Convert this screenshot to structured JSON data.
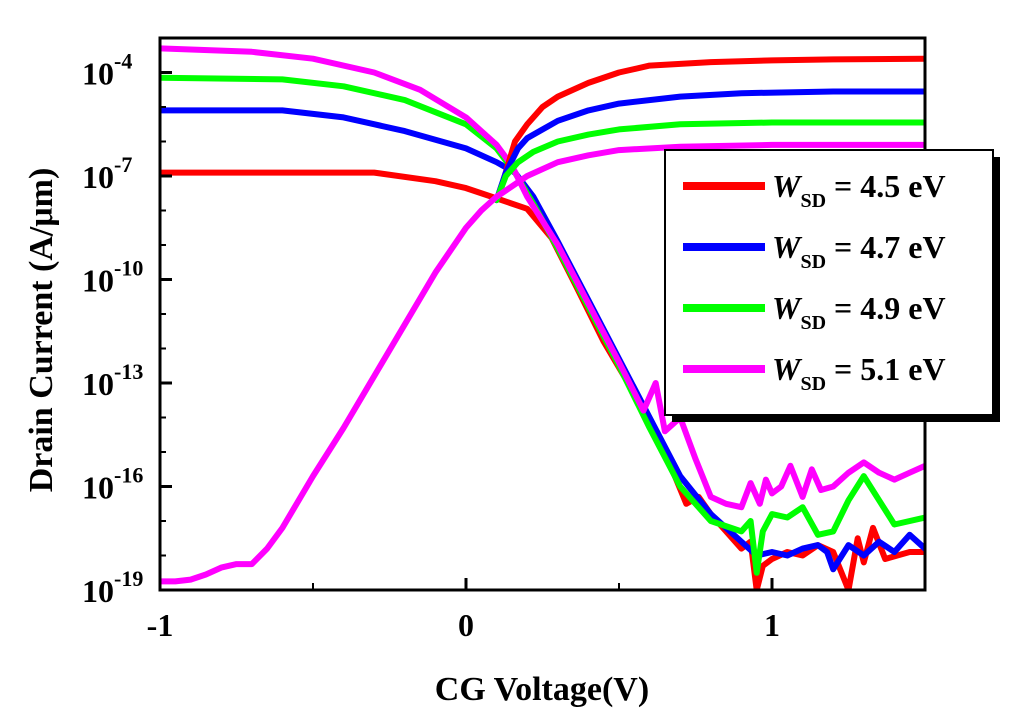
{
  "chart_data": {
    "type": "line",
    "xlabel": "CG Voltage(V)",
    "ylabel": "Drain Current (A/μm)",
    "xlim": [
      -1,
      1.5
    ],
    "ylim_log10": [
      -19,
      -3
    ],
    "yscale": "log",
    "grid": false,
    "legend_placement": "center-right",
    "x_ticks": [
      {
        "value": -1,
        "label": "-1"
      },
      {
        "value": 0,
        "label": "0"
      },
      {
        "value": 1,
        "label": "1"
      }
    ],
    "y_ticks": [
      {
        "exp": -19,
        "label_base": "10",
        "label_exp": "-19"
      },
      {
        "exp": -16,
        "label_base": "10",
        "label_exp": "-16"
      },
      {
        "exp": -13,
        "label_base": "10",
        "label_exp": "-13"
      },
      {
        "exp": -10,
        "label_base": "10",
        "label_exp": "-10"
      },
      {
        "exp": -7,
        "label_base": "10",
        "label_exp": "-7"
      },
      {
        "exp": -4,
        "label_base": "10",
        "label_exp": "-4"
      }
    ],
    "legend": [
      {
        "w": "W",
        "sub": "SD",
        "rest": " = 4.5 eV",
        "color": "#ff0000"
      },
      {
        "w": "W",
        "sub": "SD",
        "rest": " = 4.7 eV",
        "color": "#0000ff"
      },
      {
        "w": "W",
        "sub": "SD",
        "rest": " = 4.9 eV",
        "color": "#00ff00"
      },
      {
        "w": "W",
        "sub": "SD",
        "rest": " = 5.1 eV",
        "color": "#ff00ff"
      }
    ],
    "series_fwd": [
      {
        "color": "#ff0000",
        "points": [
          [
            0.1,
            -7.7
          ],
          [
            0.12,
            -7.2
          ],
          [
            0.14,
            -6.6
          ],
          [
            0.16,
            -6.0
          ],
          [
            0.2,
            -5.5
          ],
          [
            0.25,
            -5.0
          ],
          [
            0.3,
            -4.7
          ],
          [
            0.4,
            -4.3
          ],
          [
            0.5,
            -4.0
          ],
          [
            0.6,
            -3.8
          ],
          [
            0.8,
            -3.7
          ],
          [
            1.0,
            -3.65
          ],
          [
            1.2,
            -3.62
          ],
          [
            1.5,
            -3.6
          ]
        ]
      },
      {
        "color": "#0000ff",
        "points": [
          [
            0.1,
            -7.7
          ],
          [
            0.13,
            -6.9
          ],
          [
            0.17,
            -6.2
          ],
          [
            0.2,
            -5.9
          ],
          [
            0.3,
            -5.4
          ],
          [
            0.4,
            -5.1
          ],
          [
            0.5,
            -4.9
          ],
          [
            0.7,
            -4.7
          ],
          [
            0.9,
            -4.6
          ],
          [
            1.2,
            -4.55
          ],
          [
            1.5,
            -4.55
          ]
        ]
      },
      {
        "color": "#00ff00",
        "points": [
          [
            0.1,
            -7.7
          ],
          [
            0.13,
            -7.0
          ],
          [
            0.17,
            -6.6
          ],
          [
            0.22,
            -6.3
          ],
          [
            0.3,
            -6.0
          ],
          [
            0.4,
            -5.8
          ],
          [
            0.5,
            -5.65
          ],
          [
            0.7,
            -5.5
          ],
          [
            1.0,
            -5.45
          ],
          [
            1.5,
            -5.45
          ]
        ]
      },
      {
        "color": "#ff00ff",
        "points": [
          [
            -1,
            -18.75
          ],
          [
            -0.95,
            -18.75
          ],
          [
            -0.9,
            -18.7
          ],
          [
            -0.85,
            -18.55
          ],
          [
            -0.8,
            -18.35
          ],
          [
            -0.75,
            -18.25
          ],
          [
            -0.7,
            -18.25
          ],
          [
            -0.65,
            -17.8
          ],
          [
            -0.6,
            -17.2
          ],
          [
            -0.5,
            -15.7
          ],
          [
            -0.4,
            -14.3
          ],
          [
            -0.3,
            -12.8
          ],
          [
            -0.2,
            -11.3
          ],
          [
            -0.1,
            -9.8
          ],
          [
            0,
            -8.5
          ],
          [
            0.05,
            -8.0
          ],
          [
            0.1,
            -7.6
          ],
          [
            0.15,
            -7.3
          ],
          [
            0.2,
            -7.0
          ],
          [
            0.3,
            -6.6
          ],
          [
            0.4,
            -6.4
          ],
          [
            0.5,
            -6.25
          ],
          [
            0.7,
            -6.15
          ],
          [
            1.0,
            -6.1
          ],
          [
            1.5,
            -6.1
          ]
        ]
      }
    ],
    "series_rev": [
      {
        "color": "#ff0000",
        "points": [
          [
            -1,
            -6.9
          ],
          [
            -0.6,
            -6.9
          ],
          [
            -0.3,
            -6.9
          ],
          [
            -0.1,
            -7.15
          ],
          [
            0,
            -7.35
          ],
          [
            0.1,
            -7.65
          ],
          [
            0.2,
            -7.95
          ],
          [
            0.28,
            -8.8
          ],
          [
            0.36,
            -10.2
          ],
          [
            0.45,
            -11.8
          ],
          [
            0.55,
            -13.3
          ],
          [
            0.65,
            -15.0
          ],
          [
            0.72,
            -16.5
          ],
          [
            0.76,
            -16.3
          ],
          [
            0.8,
            -16.8
          ],
          [
            0.85,
            -17.3
          ],
          [
            0.9,
            -17.8
          ],
          [
            0.93,
            -17.6
          ],
          [
            0.95,
            -19.0
          ],
          [
            0.97,
            -18.3
          ],
          [
            1.0,
            -18.1
          ],
          [
            1.05,
            -17.9
          ],
          [
            1.1,
            -18.0
          ],
          [
            1.15,
            -17.7
          ],
          [
            1.2,
            -17.9
          ],
          [
            1.25,
            -19.0
          ],
          [
            1.28,
            -17.5
          ],
          [
            1.3,
            -18.2
          ],
          [
            1.33,
            -17.2
          ],
          [
            1.37,
            -18.1
          ],
          [
            1.45,
            -17.9
          ],
          [
            1.5,
            -17.9
          ]
        ]
      },
      {
        "color": "#0000ff",
        "points": [
          [
            -1,
            -5.1
          ],
          [
            -0.6,
            -5.1
          ],
          [
            -0.4,
            -5.3
          ],
          [
            -0.2,
            -5.7
          ],
          [
            0,
            -6.2
          ],
          [
            0.1,
            -6.6
          ],
          [
            0.16,
            -6.9
          ],
          [
            0.22,
            -7.6
          ],
          [
            0.3,
            -8.9
          ],
          [
            0.4,
            -10.6
          ],
          [
            0.5,
            -12.3
          ],
          [
            0.6,
            -14.0
          ],
          [
            0.7,
            -15.7
          ],
          [
            0.8,
            -16.8
          ],
          [
            0.9,
            -17.6
          ],
          [
            0.95,
            -18.0
          ],
          [
            1.0,
            -17.9
          ],
          [
            1.05,
            -18.0
          ],
          [
            1.1,
            -17.8
          ],
          [
            1.15,
            -17.7
          ],
          [
            1.18,
            -17.9
          ],
          [
            1.2,
            -18.4
          ],
          [
            1.25,
            -17.7
          ],
          [
            1.3,
            -18.0
          ],
          [
            1.35,
            -17.6
          ],
          [
            1.4,
            -17.9
          ],
          [
            1.45,
            -17.4
          ],
          [
            1.5,
            -17.8
          ]
        ]
      },
      {
        "color": "#00ff00",
        "points": [
          [
            -1,
            -4.15
          ],
          [
            -0.6,
            -4.2
          ],
          [
            -0.4,
            -4.4
          ],
          [
            -0.2,
            -4.8
          ],
          [
            0,
            -5.5
          ],
          [
            0.1,
            -6.2
          ],
          [
            0.16,
            -6.9
          ],
          [
            0.22,
            -7.8
          ],
          [
            0.3,
            -9.1
          ],
          [
            0.4,
            -10.8
          ],
          [
            0.5,
            -12.5
          ],
          [
            0.6,
            -14.3
          ],
          [
            0.7,
            -16.0
          ],
          [
            0.8,
            -17.0
          ],
          [
            0.9,
            -17.3
          ],
          [
            0.93,
            -17.0
          ],
          [
            0.95,
            -18.5
          ],
          [
            0.97,
            -17.3
          ],
          [
            1.0,
            -16.8
          ],
          [
            1.05,
            -16.9
          ],
          [
            1.1,
            -16.6
          ],
          [
            1.15,
            -17.4
          ],
          [
            1.2,
            -17.3
          ],
          [
            1.25,
            -16.4
          ],
          [
            1.3,
            -15.7
          ],
          [
            1.35,
            -16.4
          ],
          [
            1.4,
            -17.1
          ],
          [
            1.5,
            -16.9
          ]
        ]
      },
      {
        "color": "#ff00ff",
        "points": [
          [
            -1,
            -3.3
          ],
          [
            -0.7,
            -3.4
          ],
          [
            -0.5,
            -3.6
          ],
          [
            -0.3,
            -4.0
          ],
          [
            -0.15,
            -4.5
          ],
          [
            0,
            -5.3
          ],
          [
            0.1,
            -6.1
          ],
          [
            0.15,
            -6.7
          ],
          [
            0.2,
            -7.6
          ],
          [
            0.3,
            -9.0
          ],
          [
            0.4,
            -10.7
          ],
          [
            0.5,
            -12.4
          ],
          [
            0.58,
            -13.8
          ],
          [
            0.62,
            -13.0
          ],
          [
            0.65,
            -14.4
          ],
          [
            0.7,
            -14.0
          ],
          [
            0.75,
            -15.2
          ],
          [
            0.8,
            -16.3
          ],
          [
            0.85,
            -16.5
          ],
          [
            0.9,
            -16.6
          ],
          [
            0.93,
            -15.9
          ],
          [
            0.96,
            -16.5
          ],
          [
            0.98,
            -15.8
          ],
          [
            1.0,
            -16.2
          ],
          [
            1.03,
            -16.0
          ],
          [
            1.06,
            -15.4
          ],
          [
            1.1,
            -16.3
          ],
          [
            1.13,
            -15.5
          ],
          [
            1.16,
            -16.1
          ],
          [
            1.2,
            -16.0
          ],
          [
            1.25,
            -15.6
          ],
          [
            1.3,
            -15.3
          ],
          [
            1.35,
            -15.6
          ],
          [
            1.4,
            -15.8
          ],
          [
            1.45,
            -15.6
          ],
          [
            1.5,
            -15.4
          ]
        ]
      }
    ]
  }
}
